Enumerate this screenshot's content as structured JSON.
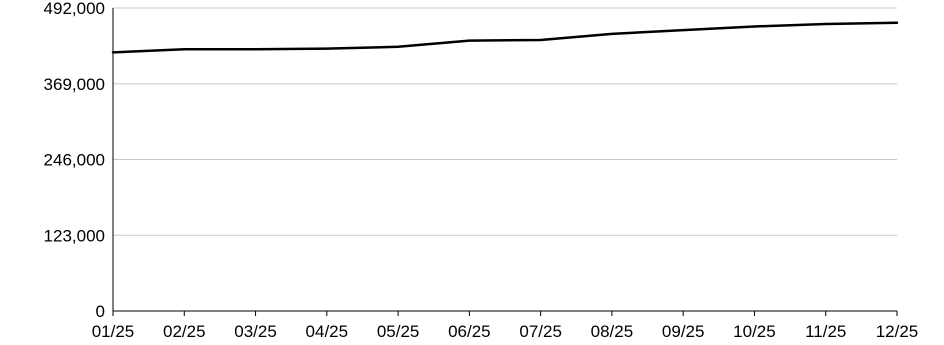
{
  "chart_data": {
    "type": "line",
    "title": "",
    "xlabel": "",
    "ylabel": "",
    "categories": [
      "01/25",
      "02/25",
      "03/25",
      "04/25",
      "05/25",
      "06/25",
      "07/25",
      "08/25",
      "09/25",
      "10/25",
      "11/25",
      "12/25"
    ],
    "series": [
      {
        "values": [
          420000,
          425000,
          425000,
          426000,
          429000,
          439000,
          440000,
          450000,
          456000,
          462000,
          466000,
          468000
        ]
      }
    ],
    "y_ticks": [
      "0",
      "123,000",
      "246,000",
      "369,000",
      "492,000"
    ],
    "ylim": [
      0,
      492000
    ],
    "grid": true,
    "legend": "none",
    "colors": {
      "line": "#000000",
      "grid": "#c8c8c8",
      "axis": "#000000",
      "text": "#000000"
    }
  }
}
